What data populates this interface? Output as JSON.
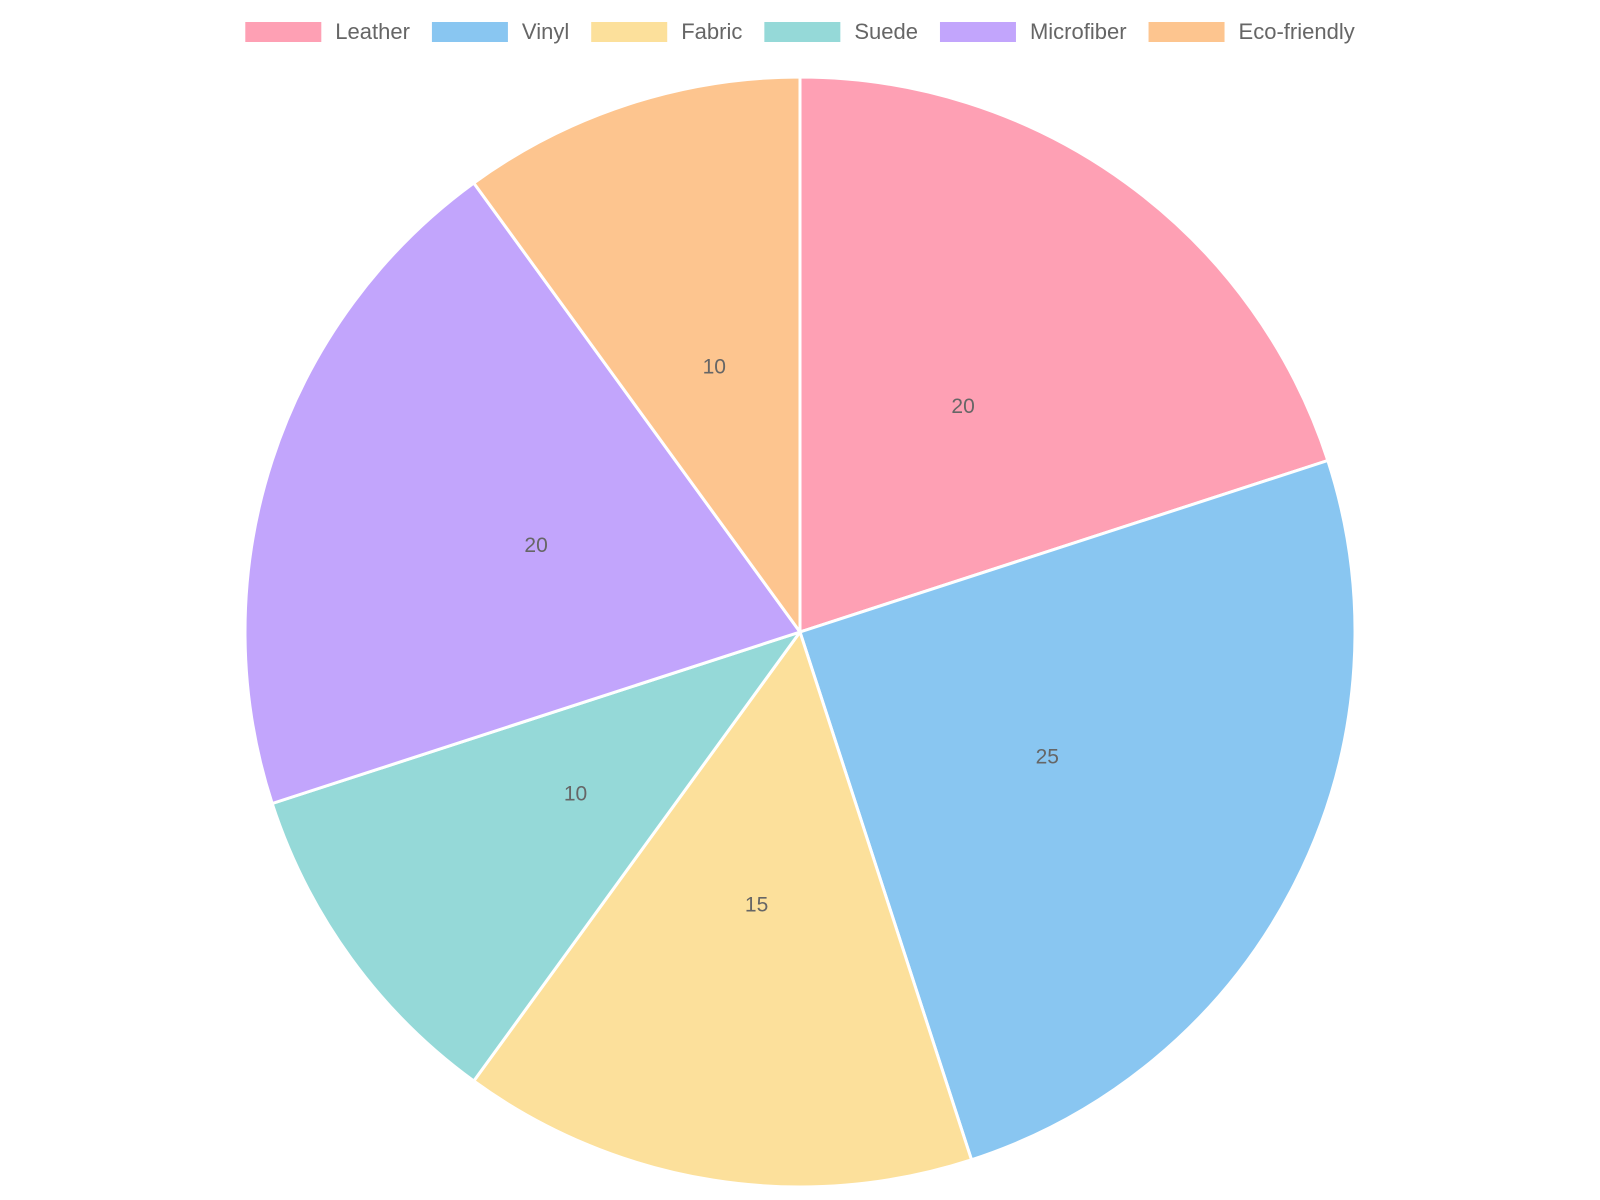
{
  "chart_data": {
    "type": "pie",
    "categories": [
      "Leather",
      "Vinyl",
      "Fabric",
      "Suede",
      "Microfiber",
      "Eco-friendly"
    ],
    "values": [
      20,
      25,
      15,
      10,
      20,
      10
    ],
    "colors": [
      "#fea0b4",
      "#89c6f1",
      "#fce09b",
      "#95d9d8",
      "#c2a5fc",
      "#fdc58f"
    ],
    "legend": "top"
  }
}
